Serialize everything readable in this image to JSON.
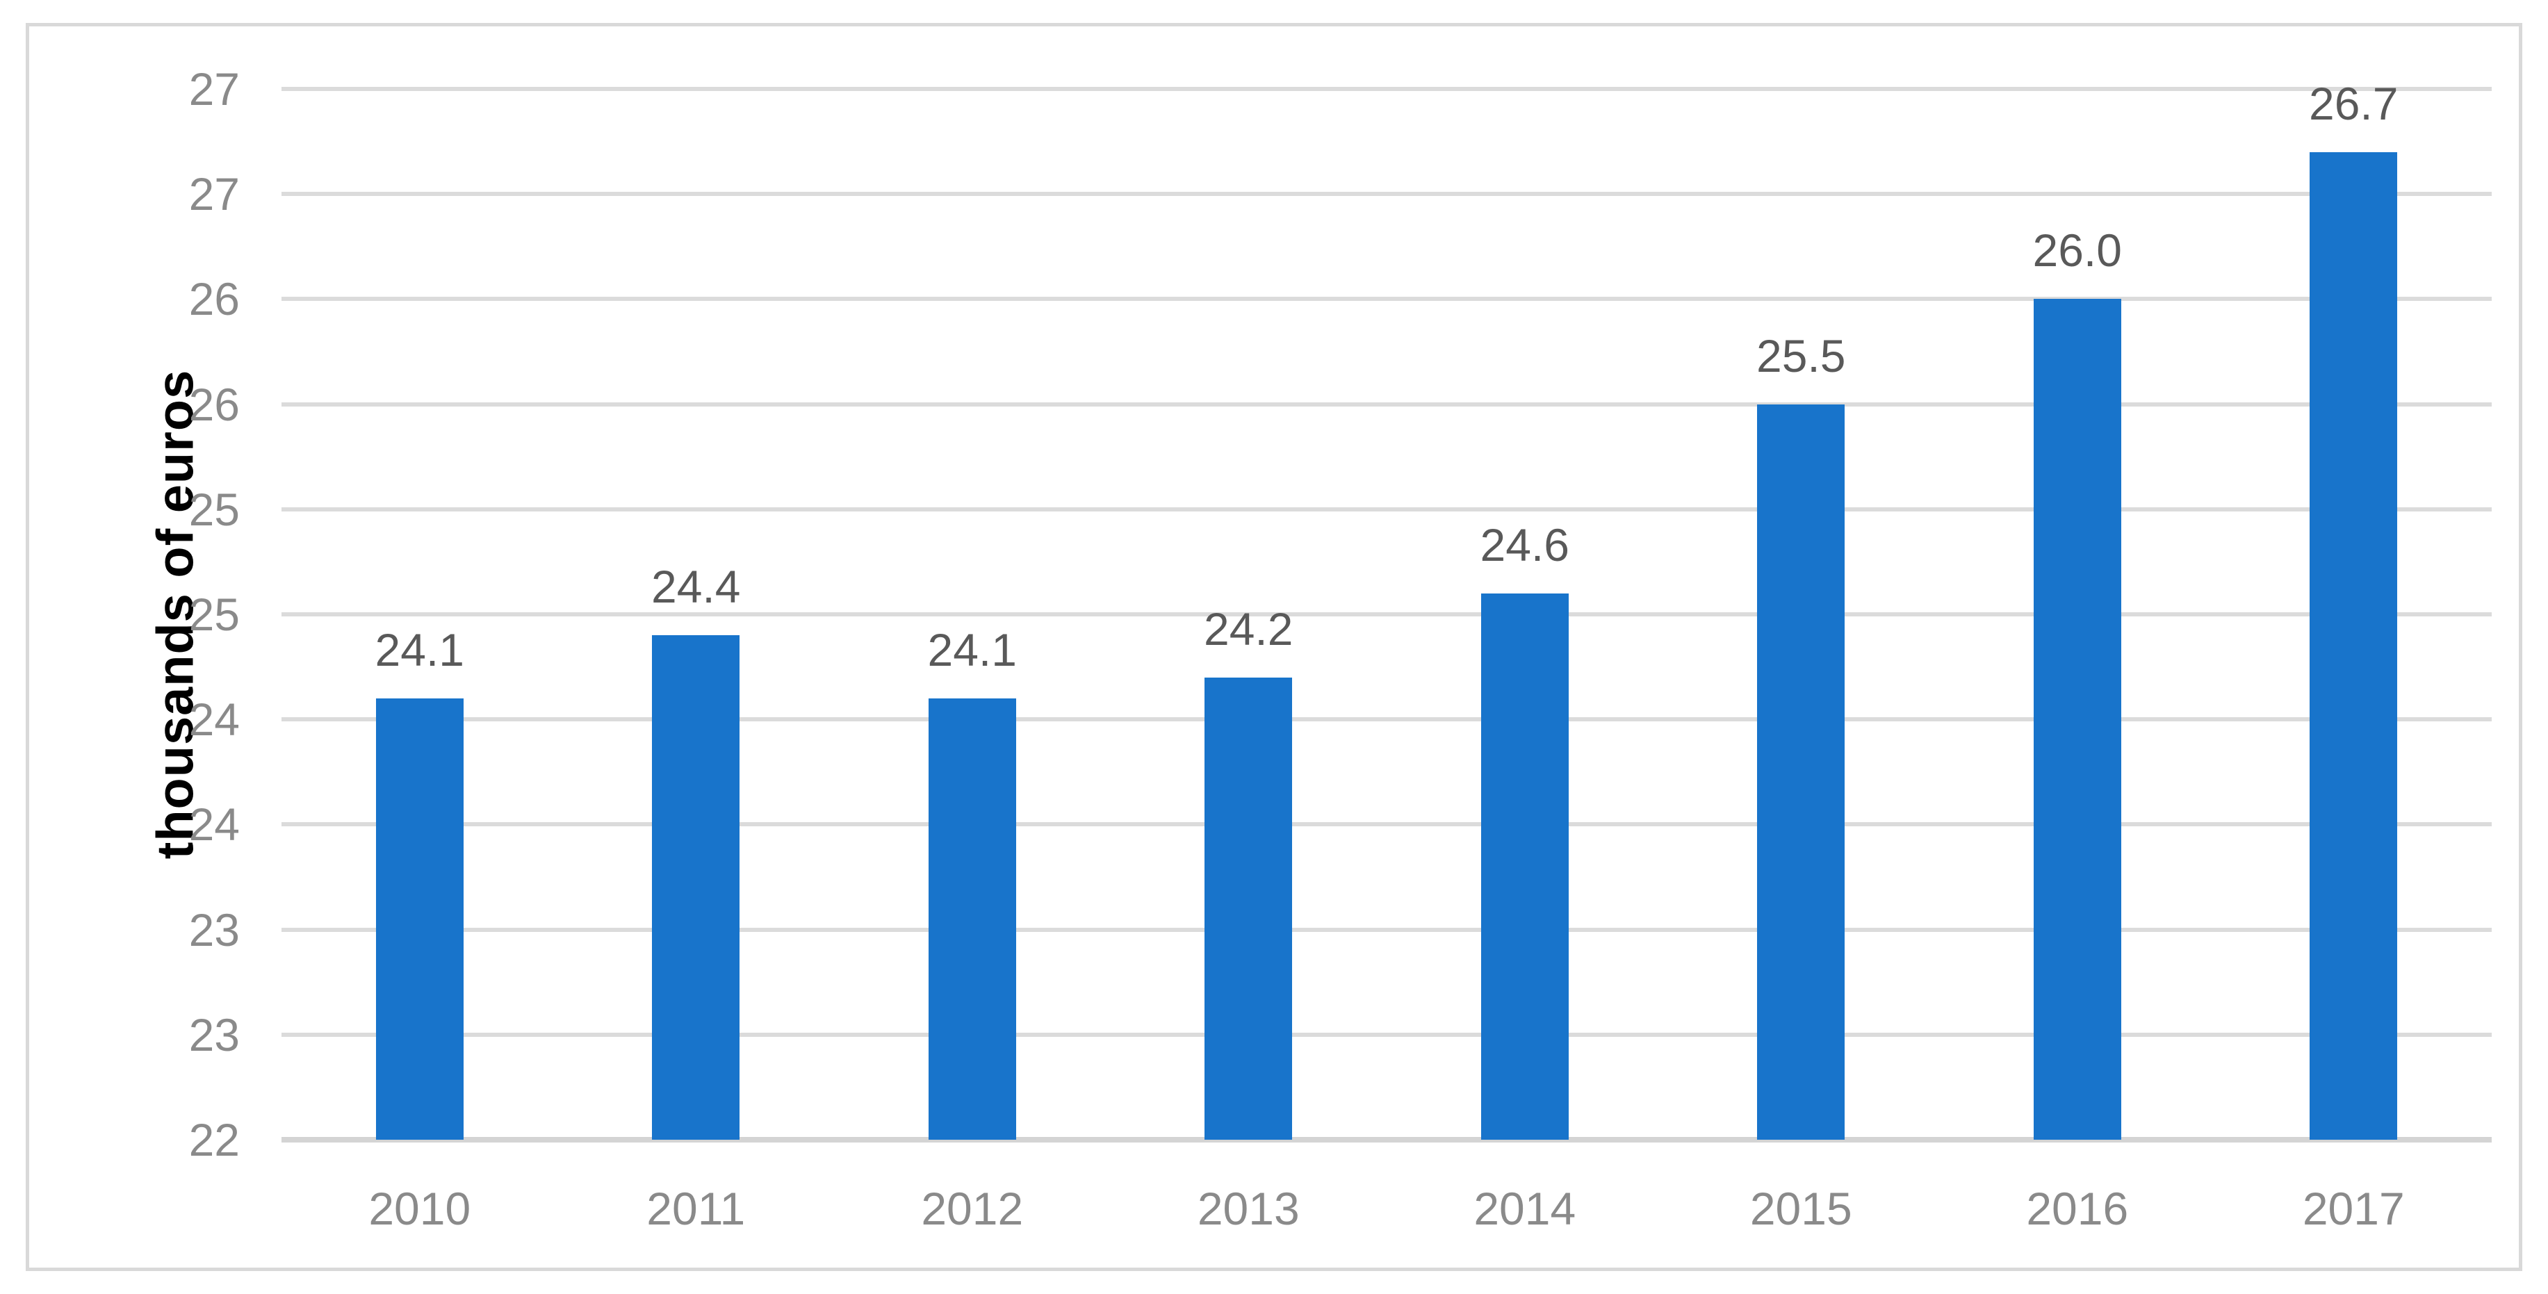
{
  "chart_data": {
    "type": "bar",
    "title": "",
    "xlabel": "",
    "ylabel": "thousands of euros",
    "categories": [
      "2010",
      "2011",
      "2012",
      "2013",
      "2014",
      "2015",
      "2016",
      "2017"
    ],
    "values": [
      24.1,
      24.4,
      24.1,
      24.2,
      24.6,
      25.5,
      26.0,
      26.7
    ],
    "data_labels": [
      "24.1",
      "24.4",
      "24.1",
      "24.2",
      "24.6",
      "25.5",
      "26.0",
      "26.7"
    ],
    "ylim": [
      22,
      27
    ],
    "y_major_unit": 0.5,
    "y_tick_labels_top_to_bottom": [
      "27",
      "27",
      "26",
      "26",
      "25",
      "25",
      "24",
      "24",
      "23",
      "23",
      "22"
    ],
    "grid": true,
    "legend": "none",
    "bars_start_at_axis_min": true,
    "colors": {
      "bar": "#1874CB",
      "gridline": "#DBDBDB",
      "axis_line": "#D4D4D4",
      "frame_border": "#D9D9D9",
      "tick_label": "#8A8A8A",
      "x_tick_label": "#8A8A8A",
      "data_label": "#595959",
      "axis_title": "#000000",
      "background": "#FFFFFF"
    }
  }
}
